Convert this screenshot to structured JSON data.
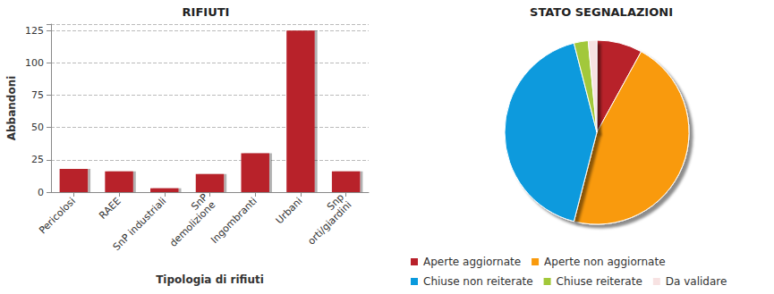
{
  "chart_data": [
    {
      "type": "bar",
      "title": "RIFIUTI",
      "xlabel": "Tipologia di rifiuti",
      "ylabel": "Abbandoni",
      "categories": [
        "Pericolosi",
        "RAEE",
        "SnP industriali",
        "SnP\ndemolizione",
        "Ingombranti",
        "Urbani",
        "Snp\norti/giardini"
      ],
      "values": [
        18,
        16,
        3,
        14,
        30,
        125,
        16
      ],
      "color": "#b8202a",
      "ylim": [
        0,
        130
      ],
      "yticks": [
        0,
        25,
        50,
        75,
        100,
        125
      ],
      "grid": true
    },
    {
      "type": "pie",
      "title": "STATO SEGNALAZIONI",
      "categories": [
        "Aperte aggiornate",
        "Aperte non aggiornate",
        "Chiuse non reiterate",
        "Chiuse reiterate",
        "Da validare"
      ],
      "values": [
        8,
        46,
        42,
        2.5,
        1.5
      ],
      "colors": [
        "#b8202a",
        "#f99a0c",
        "#0a9add",
        "#a2c83a",
        "#f7e2e2"
      ],
      "legend": "bottom"
    }
  ]
}
